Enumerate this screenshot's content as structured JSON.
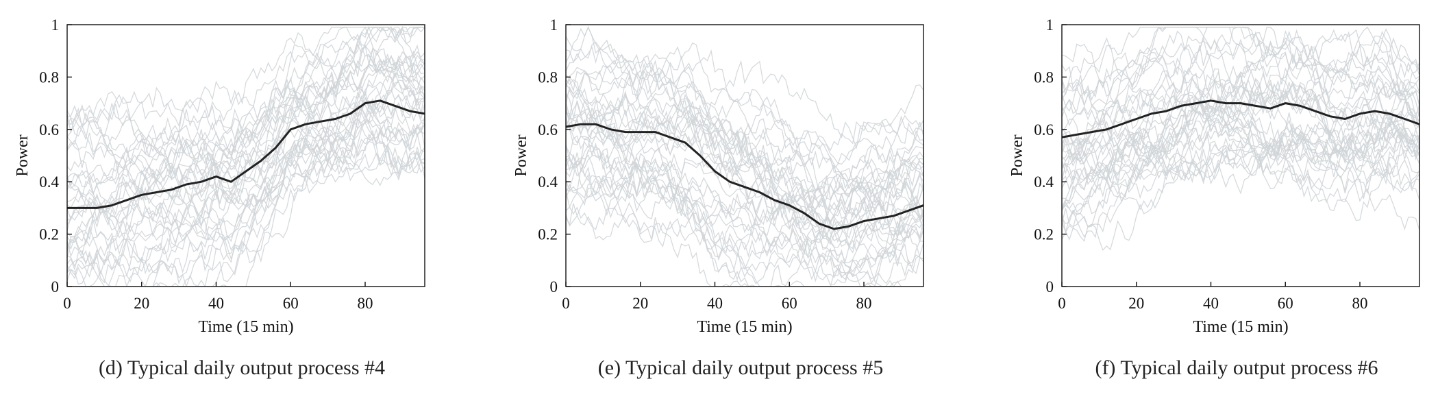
{
  "chart_data": [
    {
      "type": "line",
      "caption": "(d) Typical daily output process #4",
      "xlabel": "Time (15 min)",
      "ylabel": "Power",
      "xlim": [
        0,
        96
      ],
      "ylim": [
        0,
        1
      ],
      "xticks": [
        0,
        20,
        40,
        60,
        80
      ],
      "yticks": [
        0,
        0.2,
        0.4,
        0.6,
        0.8,
        1
      ],
      "grid": false,
      "colors": {
        "background_curves": "#cfd3d7",
        "typical_curve": "#222222"
      },
      "x": [
        0,
        4,
        8,
        12,
        16,
        20,
        24,
        28,
        32,
        36,
        40,
        44,
        48,
        52,
        56,
        60,
        64,
        68,
        72,
        76,
        80,
        84,
        88,
        92,
        96
      ],
      "series": [
        {
          "values": [
            0.3,
            0.3,
            0.3,
            0.31,
            0.33,
            0.35,
            0.36,
            0.37,
            0.39,
            0.4,
            0.42,
            0.4,
            0.44,
            0.48,
            0.53,
            0.6,
            0.62,
            0.63,
            0.64,
            0.66,
            0.7,
            0.71,
            0.69,
            0.67,
            0.66
          ]
        }
      ]
    },
    {
      "type": "line",
      "caption": "(e) Typical daily output process #5",
      "xlabel": "Time (15 min)",
      "ylabel": "Power",
      "xlim": [
        0,
        96
      ],
      "ylim": [
        0,
        1
      ],
      "xticks": [
        0,
        20,
        40,
        60,
        80
      ],
      "yticks": [
        0,
        0.2,
        0.4,
        0.6,
        0.8,
        1
      ],
      "grid": false,
      "colors": {
        "background_curves": "#cfd3d7",
        "typical_curve": "#222222"
      },
      "x": [
        0,
        4,
        8,
        12,
        16,
        20,
        24,
        28,
        32,
        36,
        40,
        44,
        48,
        52,
        56,
        60,
        64,
        68,
        72,
        76,
        80,
        84,
        88,
        92,
        96
      ],
      "series": [
        {
          "values": [
            0.61,
            0.62,
            0.62,
            0.6,
            0.59,
            0.59,
            0.59,
            0.57,
            0.55,
            0.5,
            0.44,
            0.4,
            0.38,
            0.36,
            0.33,
            0.31,
            0.28,
            0.24,
            0.22,
            0.23,
            0.25,
            0.26,
            0.27,
            0.29,
            0.31
          ]
        }
      ]
    },
    {
      "type": "line",
      "caption": "(f) Typical daily output process #6",
      "xlabel": "Time (15 min)",
      "ylabel": "Power",
      "xlim": [
        0,
        96
      ],
      "ylim": [
        0,
        1
      ],
      "xticks": [
        0,
        20,
        40,
        60,
        80
      ],
      "yticks": [
        0,
        0.2,
        0.4,
        0.6,
        0.8,
        1
      ],
      "grid": false,
      "colors": {
        "background_curves": "#cfd3d7",
        "typical_curve": "#222222"
      },
      "x": [
        0,
        4,
        8,
        12,
        16,
        20,
        24,
        28,
        32,
        36,
        40,
        44,
        48,
        52,
        56,
        60,
        64,
        68,
        72,
        76,
        80,
        84,
        88,
        92,
        96
      ],
      "series": [
        {
          "values": [
            0.57,
            0.58,
            0.59,
            0.6,
            0.62,
            0.64,
            0.66,
            0.67,
            0.69,
            0.7,
            0.71,
            0.7,
            0.7,
            0.69,
            0.68,
            0.7,
            0.69,
            0.67,
            0.65,
            0.64,
            0.66,
            0.67,
            0.66,
            0.64,
            0.62
          ]
        }
      ]
    }
  ]
}
